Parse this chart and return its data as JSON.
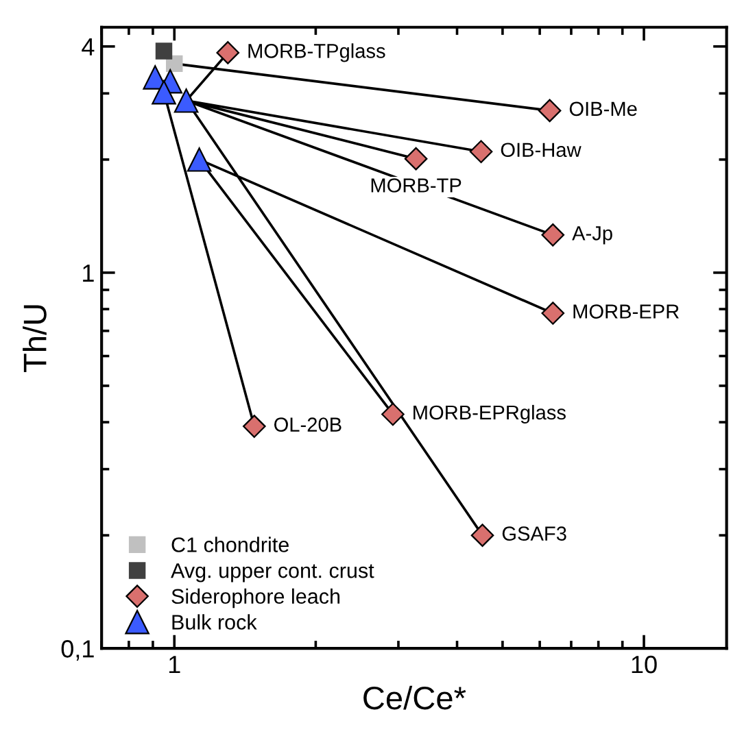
{
  "chart_data": {
    "type": "scatter",
    "xlabel": "Ce/Ce*",
    "ylabel": "Th/U",
    "log": "xy",
    "xlim": [
      0.7,
      15
    ],
    "ylim": [
      0.1,
      4.5
    ],
    "xticks": [
      1,
      10
    ],
    "yticks": [
      {
        "value": 0.1,
        "label": "0,1"
      },
      1,
      4
    ],
    "grid": false,
    "legend": "bottom left",
    "series": [
      {
        "type": "line",
        "color": "#000000",
        "marker": "none",
        "x": [
          1.0,
          6.3,
          null,
          1.06,
          1.3,
          null,
          1.06,
          4.5,
          null,
          1.06,
          3.27,
          null,
          1.06,
          6.4,
          null,
          1.06,
          4.53,
          null,
          1.13,
          6.4,
          null,
          1.13,
          2.92,
          null,
          0.95,
          1.48
        ],
        "values": [
          3.6,
          2.7,
          null,
          2.87,
          3.85,
          null,
          2.87,
          2.1,
          null,
          2.87,
          2.01,
          null,
          2.87,
          1.26,
          null,
          2.87,
          0.2,
          null,
          2.0,
          0.78,
          null,
          2.0,
          0.42,
          null,
          3.02,
          0.39
        ]
      },
      {
        "name": "C1 chondrite",
        "color": "#c0c0c0",
        "marker": "square",
        "x": [
          1.0
        ],
        "values": [
          3.6
        ]
      },
      {
        "name": "Avg. upper cont. crust",
        "color": "#404040",
        "marker": "square",
        "x": [
          0.95
        ],
        "values": [
          3.89
        ]
      },
      {
        "name": "Siderophore leach",
        "color": "#d9706e",
        "marker": "diamond",
        "x": [
          1.3,
          6.3,
          4.5,
          3.27,
          6.4,
          6.4,
          1.48,
          2.92,
          4.53
        ],
        "values": [
          3.85,
          2.7,
          2.1,
          2.01,
          1.26,
          0.78,
          0.39,
          0.42,
          0.2
        ]
      },
      {
        "name": "Bulk rock",
        "color": "#3b5bff",
        "marker": "triangle",
        "x": [
          0.91,
          0.98,
          0.95,
          1.06,
          1.13
        ],
        "values": [
          3.31,
          3.23,
          3.02,
          2.87,
          2.0
        ]
      }
    ],
    "annotations": [
      {
        "text": "MORB-TPglass",
        "x": 1.3,
        "y": 3.85
      },
      {
        "text": "OIB-Me",
        "x": 6.3,
        "y": 2.7
      },
      {
        "text": "OIB-Haw",
        "x": 4.5,
        "y": 2.1
      },
      {
        "text": "MORB-TP",
        "x": 3.27,
        "y": 2.01
      },
      {
        "text": "A-Jp",
        "x": 6.4,
        "y": 1.26
      },
      {
        "text": "MORB-EPR",
        "x": 6.4,
        "y": 0.78
      },
      {
        "text": "OL-20B",
        "x": 1.48,
        "y": 0.39
      },
      {
        "text": "MORB-EPRglass",
        "x": 2.92,
        "y": 0.42
      },
      {
        "text": "GSAF3",
        "x": 4.53,
        "y": 0.2
      }
    ]
  }
}
